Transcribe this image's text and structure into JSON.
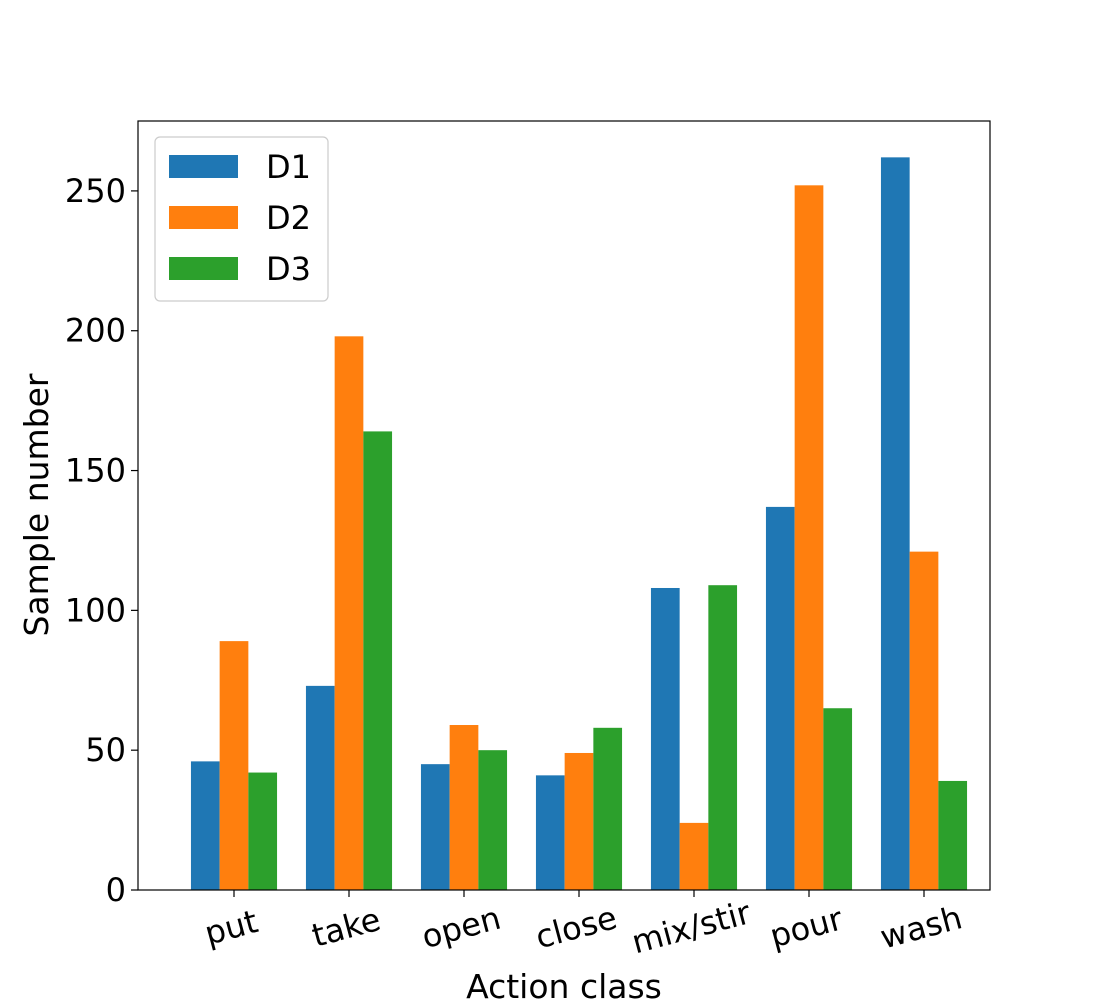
{
  "chart_data": {
    "type": "bar",
    "title": "",
    "xlabel": "Action class",
    "ylabel": "Sample number",
    "categories": [
      "put",
      "take",
      "open",
      "close",
      "mix/stir",
      "pour",
      "wash"
    ],
    "series": [
      {
        "name": "D1",
        "color": "#1f77b4",
        "values": [
          46,
          73,
          45,
          41,
          108,
          137,
          262
        ]
      },
      {
        "name": "D2",
        "color": "#ff7f0e",
        "values": [
          89,
          198,
          59,
          49,
          24,
          252,
          121
        ]
      },
      {
        "name": "D3",
        "color": "#2ca02c",
        "values": [
          42,
          164,
          50,
          58,
          109,
          65,
          39
        ]
      }
    ],
    "ylim": [
      0,
      275
    ],
    "yticks": [
      "0",
      "50",
      "100",
      "150",
      "200",
      "250"
    ],
    "xtick_rotation": "-15deg",
    "grid": false,
    "legend": "top-left"
  }
}
